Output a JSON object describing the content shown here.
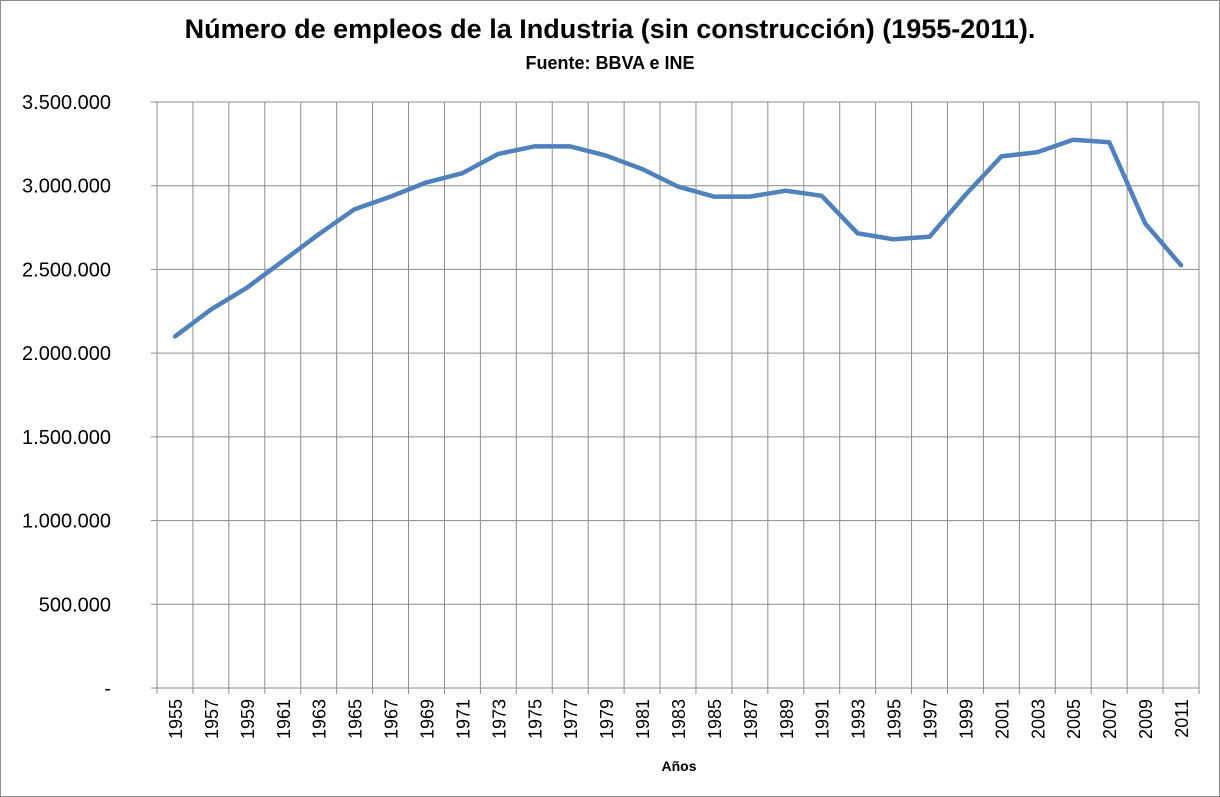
{
  "chart_data": {
    "type": "line",
    "title": "Número de empleos de la Industria (sin construcción) (1955-2011).",
    "subtitle": "Fuente: BBVA e INE",
    "xlabel": "Años",
    "ylabel": "",
    "ylim": [
      0,
      3500000
    ],
    "y_ticks": [
      {
        "value": 0,
        "label": "-"
      },
      {
        "value": 500000,
        "label": "500.000"
      },
      {
        "value": 1000000,
        "label": "1.000.000"
      },
      {
        "value": 1500000,
        "label": "1.500.000"
      },
      {
        "value": 2000000,
        "label": "2.000.000"
      },
      {
        "value": 2500000,
        "label": "2.500.000"
      },
      {
        "value": 3000000,
        "label": "3.000.000"
      },
      {
        "value": 3500000,
        "label": "3.500.000"
      }
    ],
    "categories": [
      "1955",
      "1957",
      "1959",
      "1961",
      "1963",
      "1965",
      "1967",
      "1969",
      "1971",
      "1973",
      "1975",
      "1977",
      "1979",
      "1981",
      "1983",
      "1985",
      "1987",
      "1989",
      "1991",
      "1993",
      "1995",
      "1997",
      "1999",
      "2001",
      "2003",
      "2005",
      "2007",
      "2009",
      "2011"
    ],
    "grid": true,
    "legend": "none",
    "series": [
      {
        "color": "#4f81bd",
        "values": [
          2100000,
          2260000,
          2390000,
          2550000,
          2710000,
          2860000,
          2935000,
          3020000,
          3075000,
          3190000,
          3235000,
          3235000,
          3180000,
          3100000,
          2995000,
          2935000,
          2935000,
          2970000,
          2940000,
          2715000,
          2680000,
          2695000,
          2945000,
          3175000,
          3200000,
          3275000,
          3260000,
          2775000,
          2525000
        ]
      }
    ]
  }
}
